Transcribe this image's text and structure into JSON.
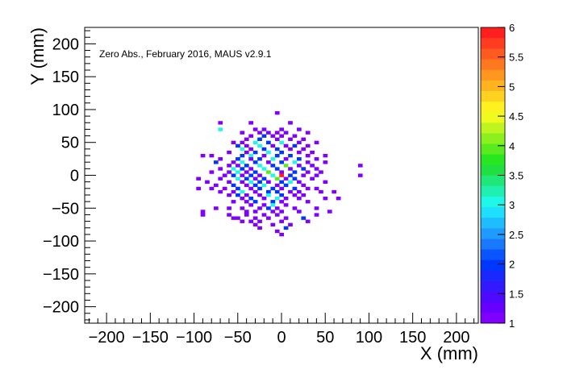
{
  "chart_data": {
    "type": "heatmap",
    "annotation": "Zero Abs., February 2016, MAUS v2.9.1",
    "xlabel": "X (mm)",
    "ylabel": "Y (mm)",
    "xlim": [
      -225,
      225
    ],
    "ylim": [
      -225,
      225
    ],
    "x_ticks": [
      -200,
      -150,
      -100,
      -50,
      0,
      50,
      100,
      150,
      200
    ],
    "y_ticks": [
      -200,
      -150,
      -100,
      -50,
      0,
      50,
      100,
      150,
      200
    ],
    "x_tick_labels": [
      "−200",
      "−150",
      "−100",
      "−50",
      "0",
      "50",
      "100",
      "150",
      "200"
    ],
    "y_tick_labels": [
      "−200",
      "−150",
      "−100",
      "−50",
      "0",
      "50",
      "100",
      "150",
      "200"
    ],
    "bin_size": 5,
    "zlim": [
      1,
      6
    ],
    "z_ticks": [
      1,
      1.5,
      2,
      2.5,
      3,
      3.5,
      4,
      4.5,
      5,
      5.5,
      6
    ],
    "z_tick_labels": [
      "1",
      "1.5",
      "2",
      "2.5",
      "3",
      "3.5",
      "4",
      "4.5",
      "5",
      "5.5",
      "6"
    ],
    "palette": [
      "#7f00ff",
      "#6600ff",
      "#4d0aff",
      "#3319ff",
      "#1a28ff",
      "#0037ff",
      "#0a55ff",
      "#1a78ff",
      "#1f9aff",
      "#1fbdff",
      "#1fdfff",
      "#1ff7e8",
      "#1fefb0",
      "#1fe878",
      "#1fe040",
      "#28e61f",
      "#5aeb1f",
      "#8cf01f",
      "#bef51f",
      "#f0fa1f",
      "#fff01f",
      "#ffd21f",
      "#ffb41f",
      "#ff961f",
      "#ff781f",
      "#ff5a1f",
      "#ff3c1f",
      "#ff1f1f"
    ],
    "bins": [
      {
        "x": -5,
        "y": 95,
        "z": 1
      },
      {
        "x": -70,
        "y": 80,
        "z": 1
      },
      {
        "x": -35,
        "y": 80,
        "z": 1
      },
      {
        "x": 10,
        "y": 80,
        "z": 1
      },
      {
        "x": -70,
        "y": 70,
        "z": 3
      },
      {
        "x": -30,
        "y": 70,
        "z": 1
      },
      {
        "x": -20,
        "y": 70,
        "z": 1
      },
      {
        "x": 0,
        "y": 70,
        "z": 1
      },
      {
        "x": 20,
        "y": 70,
        "z": 1
      },
      {
        "x": -45,
        "y": 65,
        "z": 1
      },
      {
        "x": -25,
        "y": 65,
        "z": 1
      },
      {
        "x": -15,
        "y": 65,
        "z": 1
      },
      {
        "x": -5,
        "y": 65,
        "z": 1
      },
      {
        "x": 5,
        "y": 65,
        "z": 1
      },
      {
        "x": 30,
        "y": 65,
        "z": 1
      },
      {
        "x": -35,
        "y": 60,
        "z": 1
      },
      {
        "x": -20,
        "y": 60,
        "z": 2
      },
      {
        "x": -10,
        "y": 60,
        "z": 1
      },
      {
        "x": 0,
        "y": 60,
        "z": 1
      },
      {
        "x": 15,
        "y": 60,
        "z": 1
      },
      {
        "x": -40,
        "y": 55,
        "z": 1
      },
      {
        "x": -25,
        "y": 55,
        "z": 2
      },
      {
        "x": -5,
        "y": 55,
        "z": 1
      },
      {
        "x": 10,
        "y": 55,
        "z": 1
      },
      {
        "x": 25,
        "y": 55,
        "z": 1
      },
      {
        "x": -55,
        "y": 50,
        "z": 1
      },
      {
        "x": -45,
        "y": 50,
        "z": 1
      },
      {
        "x": -30,
        "y": 50,
        "z": 3
      },
      {
        "x": -15,
        "y": 50,
        "z": 2
      },
      {
        "x": 0,
        "y": 50,
        "z": 3
      },
      {
        "x": 20,
        "y": 50,
        "z": 1
      },
      {
        "x": 40,
        "y": 50,
        "z": 1
      },
      {
        "x": -50,
        "y": 45,
        "z": 2
      },
      {
        "x": -40,
        "y": 45,
        "z": 1
      },
      {
        "x": -25,
        "y": 45,
        "z": 3
      },
      {
        "x": -10,
        "y": 45,
        "z": 1
      },
      {
        "x": 5,
        "y": 45,
        "z": 1
      },
      {
        "x": 15,
        "y": 45,
        "z": 2
      },
      {
        "x": 30,
        "y": 45,
        "z": 1
      },
      {
        "x": -45,
        "y": 40,
        "z": 3
      },
      {
        "x": -35,
        "y": 40,
        "z": 1
      },
      {
        "x": -20,
        "y": 40,
        "z": 2
      },
      {
        "x": -5,
        "y": 40,
        "z": 2
      },
      {
        "x": 10,
        "y": 40,
        "z": 1
      },
      {
        "x": 25,
        "y": 40,
        "z": 1
      },
      {
        "x": -60,
        "y": 35,
        "z": 1
      },
      {
        "x": -40,
        "y": 35,
        "z": 1
      },
      {
        "x": -30,
        "y": 35,
        "z": 2
      },
      {
        "x": -15,
        "y": 35,
        "z": 3
      },
      {
        "x": 0,
        "y": 35,
        "z": 2
      },
      {
        "x": 20,
        "y": 35,
        "z": 1
      },
      {
        "x": 35,
        "y": 35,
        "z": 1
      },
      {
        "x": -90,
        "y": 30,
        "z": 1
      },
      {
        "x": -80,
        "y": 30,
        "z": 1
      },
      {
        "x": -45,
        "y": 30,
        "z": 2
      },
      {
        "x": -35,
        "y": 30,
        "z": 3
      },
      {
        "x": -20,
        "y": 30,
        "z": 1
      },
      {
        "x": -5,
        "y": 30,
        "z": 2
      },
      {
        "x": 10,
        "y": 30,
        "z": 2
      },
      {
        "x": 30,
        "y": 30,
        "z": 1
      },
      {
        "x": 50,
        "y": 30,
        "z": 1
      },
      {
        "x": -70,
        "y": 25,
        "z": 1
      },
      {
        "x": -50,
        "y": 25,
        "z": 2
      },
      {
        "x": -35,
        "y": 25,
        "z": 1
      },
      {
        "x": -25,
        "y": 25,
        "z": 2
      },
      {
        "x": -10,
        "y": 25,
        "z": 3
      },
      {
        "x": 5,
        "y": 25,
        "z": 1
      },
      {
        "x": 20,
        "y": 25,
        "z": 2
      },
      {
        "x": 40,
        "y": 25,
        "z": 1
      },
      {
        "x": -75,
        "y": 20,
        "z": 2
      },
      {
        "x": -55,
        "y": 20,
        "z": 1
      },
      {
        "x": -45,
        "y": 20,
        "z": 3
      },
      {
        "x": -30,
        "y": 20,
        "z": 2
      },
      {
        "x": -15,
        "y": 20,
        "z": 1
      },
      {
        "x": 0,
        "y": 20,
        "z": 2
      },
      {
        "x": 15,
        "y": 20,
        "z": 3
      },
      {
        "x": 30,
        "y": 20,
        "z": 1
      },
      {
        "x": 50,
        "y": 20,
        "z": 1
      },
      {
        "x": -60,
        "y": 15,
        "z": 1
      },
      {
        "x": -50,
        "y": 15,
        "z": 1
      },
      {
        "x": -40,
        "y": 15,
        "z": 2
      },
      {
        "x": -25,
        "y": 15,
        "z": 3
      },
      {
        "x": -10,
        "y": 15,
        "z": 2
      },
      {
        "x": 5,
        "y": 15,
        "z": 4
      },
      {
        "x": 20,
        "y": 15,
        "z": 1
      },
      {
        "x": 35,
        "y": 15,
        "z": 1
      },
      {
        "x": 90,
        "y": 15,
        "z": 1
      },
      {
        "x": -70,
        "y": 10,
        "z": 1
      },
      {
        "x": -55,
        "y": 10,
        "z": 3
      },
      {
        "x": -45,
        "y": 10,
        "z": 2
      },
      {
        "x": -35,
        "y": 10,
        "z": 1
      },
      {
        "x": -20,
        "y": 10,
        "z": 3
      },
      {
        "x": -5,
        "y": 10,
        "z": 2
      },
      {
        "x": 10,
        "y": 10,
        "z": 1
      },
      {
        "x": 25,
        "y": 10,
        "z": 2
      },
      {
        "x": 40,
        "y": 10,
        "z": 1
      },
      {
        "x": -80,
        "y": 5,
        "z": 1
      },
      {
        "x": -60,
        "y": 5,
        "z": 1
      },
      {
        "x": -50,
        "y": 5,
        "z": 3
      },
      {
        "x": -40,
        "y": 5,
        "z": 1
      },
      {
        "x": -30,
        "y": 5,
        "z": 2
      },
      {
        "x": -15,
        "y": 5,
        "z": 4
      },
      {
        "x": 0,
        "y": 5,
        "z": 1
      },
      {
        "x": 15,
        "y": 5,
        "z": 2
      },
      {
        "x": 30,
        "y": 5,
        "z": 1
      },
      {
        "x": 45,
        "y": 5,
        "z": 1
      },
      {
        "x": -65,
        "y": 0,
        "z": 1
      },
      {
        "x": -55,
        "y": 0,
        "z": 2
      },
      {
        "x": -45,
        "y": 0,
        "z": 1
      },
      {
        "x": -35,
        "y": 0,
        "z": 2
      },
      {
        "x": -25,
        "y": 0,
        "z": 1
      },
      {
        "x": -10,
        "y": 0,
        "z": 3
      },
      {
        "x": 0,
        "y": 0,
        "z": 6
      },
      {
        "x": 10,
        "y": 0,
        "z": 2
      },
      {
        "x": 25,
        "y": 0,
        "z": 1
      },
      {
        "x": 40,
        "y": 0,
        "z": 1
      },
      {
        "x": 90,
        "y": 0,
        "z": 1
      },
      {
        "x": -95,
        "y": -5,
        "z": 1
      },
      {
        "x": -70,
        "y": -5,
        "z": 1
      },
      {
        "x": -50,
        "y": -5,
        "z": 3
      },
      {
        "x": -40,
        "y": -5,
        "z": 2
      },
      {
        "x": -30,
        "y": -5,
        "z": 1
      },
      {
        "x": -20,
        "y": -5,
        "z": 2
      },
      {
        "x": -5,
        "y": -5,
        "z": 4
      },
      {
        "x": 5,
        "y": -5,
        "z": 1
      },
      {
        "x": 15,
        "y": -5,
        "z": 2
      },
      {
        "x": 35,
        "y": -5,
        "z": 1
      },
      {
        "x": -85,
        "y": -10,
        "z": 1
      },
      {
        "x": -60,
        "y": -10,
        "z": 1
      },
      {
        "x": -45,
        "y": -10,
        "z": 1
      },
      {
        "x": -35,
        "y": -10,
        "z": 3
      },
      {
        "x": -25,
        "y": -10,
        "z": 2
      },
      {
        "x": -15,
        "y": -10,
        "z": 1
      },
      {
        "x": 0,
        "y": -10,
        "z": 2
      },
      {
        "x": 10,
        "y": -10,
        "z": 3
      },
      {
        "x": 20,
        "y": -10,
        "z": 1
      },
      {
        "x": 50,
        "y": -10,
        "z": 1
      },
      {
        "x": -75,
        "y": -15,
        "z": 1
      },
      {
        "x": -55,
        "y": -15,
        "z": 2
      },
      {
        "x": -40,
        "y": -15,
        "z": 1
      },
      {
        "x": -30,
        "y": -15,
        "z": 2
      },
      {
        "x": -20,
        "y": -15,
        "z": 3
      },
      {
        "x": -5,
        "y": -15,
        "z": 1
      },
      {
        "x": 5,
        "y": -15,
        "z": 2
      },
      {
        "x": 25,
        "y": -15,
        "z": 1
      },
      {
        "x": -95,
        "y": -20,
        "z": 1
      },
      {
        "x": -80,
        "y": -20,
        "z": 1
      },
      {
        "x": -65,
        "y": -20,
        "z": 1
      },
      {
        "x": -50,
        "y": -20,
        "z": 2
      },
      {
        "x": -35,
        "y": -20,
        "z": 1
      },
      {
        "x": -25,
        "y": -20,
        "z": 2
      },
      {
        "x": -10,
        "y": -20,
        "z": 2
      },
      {
        "x": 0,
        "y": -20,
        "z": 1
      },
      {
        "x": 15,
        "y": -20,
        "z": 2
      },
      {
        "x": 30,
        "y": -20,
        "z": 1
      },
      {
        "x": 40,
        "y": -20,
        "z": 1
      },
      {
        "x": -70,
        "y": -25,
        "z": 1
      },
      {
        "x": -55,
        "y": -25,
        "z": 1
      },
      {
        "x": -45,
        "y": -25,
        "z": 3
      },
      {
        "x": -30,
        "y": -25,
        "z": 1
      },
      {
        "x": -15,
        "y": -25,
        "z": 2
      },
      {
        "x": -5,
        "y": -25,
        "z": 2
      },
      {
        "x": 10,
        "y": -25,
        "z": 1
      },
      {
        "x": 20,
        "y": -25,
        "z": 1
      },
      {
        "x": 45,
        "y": -25,
        "z": 1
      },
      {
        "x": 60,
        "y": -25,
        "z": 1
      },
      {
        "x": -60,
        "y": -30,
        "z": 1
      },
      {
        "x": -50,
        "y": -30,
        "z": 2
      },
      {
        "x": -40,
        "y": -30,
        "z": 1
      },
      {
        "x": -25,
        "y": -30,
        "z": 1
      },
      {
        "x": -15,
        "y": -30,
        "z": 3
      },
      {
        "x": 0,
        "y": -30,
        "z": 2
      },
      {
        "x": 15,
        "y": -30,
        "z": 1
      },
      {
        "x": 25,
        "y": -30,
        "z": 1
      },
      {
        "x": -45,
        "y": -35,
        "z": 1
      },
      {
        "x": -35,
        "y": -35,
        "z": 2
      },
      {
        "x": -20,
        "y": -35,
        "z": 1
      },
      {
        "x": -5,
        "y": -35,
        "z": 3
      },
      {
        "x": 5,
        "y": -35,
        "z": 1
      },
      {
        "x": 20,
        "y": -35,
        "z": 1
      },
      {
        "x": 50,
        "y": -35,
        "z": 1
      },
      {
        "x": 65,
        "y": -35,
        "z": 1
      },
      {
        "x": -55,
        "y": -40,
        "z": 1
      },
      {
        "x": -40,
        "y": -40,
        "z": 1
      },
      {
        "x": -30,
        "y": -40,
        "z": 2
      },
      {
        "x": -10,
        "y": -40,
        "z": 2
      },
      {
        "x": 0,
        "y": -40,
        "z": 1
      },
      {
        "x": 30,
        "y": -40,
        "z": 1
      },
      {
        "x": -35,
        "y": -45,
        "z": 1
      },
      {
        "x": -20,
        "y": -45,
        "z": 1
      },
      {
        "x": -10,
        "y": -45,
        "z": 3
      },
      {
        "x": 5,
        "y": -45,
        "z": 1
      },
      {
        "x": -75,
        "y": -50,
        "z": 1
      },
      {
        "x": -60,
        "y": -50,
        "z": 1
      },
      {
        "x": -45,
        "y": -50,
        "z": 1
      },
      {
        "x": -25,
        "y": -50,
        "z": 1
      },
      {
        "x": -15,
        "y": -50,
        "z": 2
      },
      {
        "x": -5,
        "y": -50,
        "z": 1
      },
      {
        "x": 15,
        "y": -50,
        "z": 1
      },
      {
        "x": 40,
        "y": -50,
        "z": 1
      },
      {
        "x": -90,
        "y": -55,
        "z": 1
      },
      {
        "x": -40,
        "y": -55,
        "z": 1
      },
      {
        "x": -30,
        "y": -55,
        "z": 1
      },
      {
        "x": -10,
        "y": -55,
        "z": 1
      },
      {
        "x": 0,
        "y": -55,
        "z": 1
      },
      {
        "x": 20,
        "y": -55,
        "z": 1
      },
      {
        "x": 55,
        "y": -55,
        "z": 1
      },
      {
        "x": -90,
        "y": -60,
        "z": 1
      },
      {
        "x": -60,
        "y": -60,
        "z": 1
      },
      {
        "x": -40,
        "y": -60,
        "z": 1
      },
      {
        "x": -20,
        "y": -60,
        "z": 1
      },
      {
        "x": -5,
        "y": -60,
        "z": 1
      },
      {
        "x": 40,
        "y": -60,
        "z": 1
      },
      {
        "x": -55,
        "y": -65,
        "z": 1
      },
      {
        "x": -50,
        "y": -65,
        "z": 1
      },
      {
        "x": -30,
        "y": -65,
        "z": 1
      },
      {
        "x": -15,
        "y": -65,
        "z": 1
      },
      {
        "x": 5,
        "y": -65,
        "z": 1
      },
      {
        "x": 25,
        "y": -65,
        "z": 2
      },
      {
        "x": -45,
        "y": -70,
        "z": 1
      },
      {
        "x": -35,
        "y": -70,
        "z": 1
      },
      {
        "x": -25,
        "y": -70,
        "z": 1
      },
      {
        "x": 0,
        "y": -70,
        "z": 1
      },
      {
        "x": 30,
        "y": -70,
        "z": 1
      },
      {
        "x": -30,
        "y": -75,
        "z": 1
      },
      {
        "x": -10,
        "y": -75,
        "z": 1
      },
      {
        "x": 10,
        "y": -75,
        "z": 1
      },
      {
        "x": -25,
        "y": -80,
        "z": 1
      },
      {
        "x": 5,
        "y": -80,
        "z": 2
      },
      {
        "x": -5,
        "y": -85,
        "z": 1
      },
      {
        "x": 0,
        "y": -90,
        "z": 1
      }
    ]
  }
}
